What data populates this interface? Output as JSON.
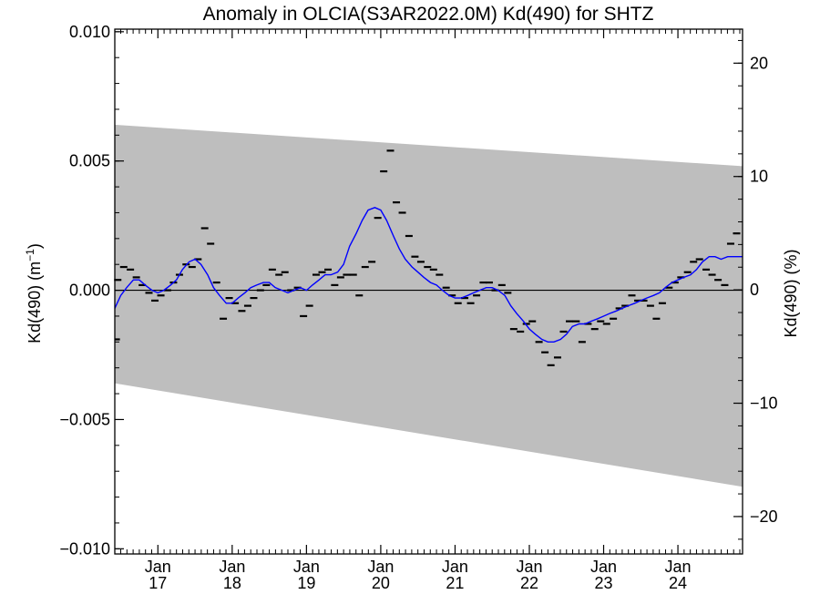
{
  "chart_data": {
    "type": "scatter",
    "title": "Anomaly in OLCIA(S3AR2022.0M) Kd(490) for SHTZ",
    "ylabel_left": "Kd(490) (m",
    "ylabel_left_sup": "−1",
    "ylabel_left_close": ")",
    "ylabel_right": "Kd(490) (%)",
    "xlim": [
      2016.42,
      2024.87
    ],
    "ylim_left": [
      -0.0102,
      0.0101
    ],
    "ylim_right": [
      -23.3,
      23.0
    ],
    "y_ticks_left": [
      {
        "value": 0.01,
        "label": "0.010"
      },
      {
        "value": 0.005,
        "label": "0.005"
      },
      {
        "value": 0.0,
        "label": "0.000"
      },
      {
        "value": -0.005,
        "label": "−0.005"
      },
      {
        "value": -0.01,
        "label": "−0.010"
      }
    ],
    "y_ticks_right": [
      {
        "value": 20,
        "label": "20"
      },
      {
        "value": 10,
        "label": "10"
      },
      {
        "value": 0,
        "label": "0"
      },
      {
        "value": -10,
        "label": "−10"
      },
      {
        "value": -20,
        "label": "−20"
      }
    ],
    "x_ticks": [
      {
        "value": 2017.0,
        "month": "Jan",
        "year": "17"
      },
      {
        "value": 2018.0,
        "month": "Jan",
        "year": "18"
      },
      {
        "value": 2019.0,
        "month": "Jan",
        "year": "19"
      },
      {
        "value": 2020.0,
        "month": "Jan",
        "year": "20"
      },
      {
        "value": 2021.0,
        "month": "Jan",
        "year": "21"
      },
      {
        "value": 2022.0,
        "month": "Jan",
        "year": "22"
      },
      {
        "value": 2023.0,
        "month": "Jan",
        "year": "23"
      },
      {
        "value": 2024.0,
        "month": "Jan",
        "year": "24"
      }
    ],
    "band": {
      "x": [
        2016.42,
        2024.87
      ],
      "upper": [
        0.0064,
        0.0048
      ],
      "lower": [
        -0.0036,
        -0.0076
      ],
      "color": "#bebebe"
    },
    "zero_line": 0,
    "monthly": {
      "x": [
        2016.46,
        2016.54,
        2016.63,
        2016.71,
        2016.79,
        2016.88,
        2016.96,
        2017.04,
        2017.13,
        2017.21,
        2017.29,
        2017.38,
        2017.46,
        2017.54,
        2017.63,
        2017.71,
        2017.79,
        2017.88,
        2017.96,
        2018.04,
        2018.13,
        2018.21,
        2018.29,
        2018.38,
        2018.46,
        2018.54,
        2018.63,
        2018.71,
        2018.79,
        2018.88,
        2018.96,
        2019.04,
        2019.13,
        2019.21,
        2019.29,
        2019.38,
        2019.46,
        2019.54,
        2019.63,
        2019.71,
        2019.79,
        2019.88,
        2019.96,
        2020.04,
        2020.13,
        2020.21,
        2020.29,
        2020.38,
        2020.46,
        2020.54,
        2020.63,
        2020.71,
        2020.79,
        2020.88,
        2020.96,
        2021.04,
        2021.13,
        2021.21,
        2021.29,
        2021.38,
        2021.46,
        2021.54,
        2021.63,
        2021.71,
        2021.79,
        2021.88,
        2021.96,
        2022.04,
        2022.13,
        2022.21,
        2022.29,
        2022.38,
        2022.46,
        2022.54,
        2022.63,
        2022.71,
        2022.79,
        2022.88,
        2022.96,
        2023.04,
        2023.13,
        2023.21,
        2023.29,
        2023.38,
        2023.46,
        2023.54,
        2023.63,
        2023.71,
        2023.79,
        2023.88,
        2023.96,
        2024.04,
        2024.13,
        2024.21,
        2024.29,
        2024.38,
        2024.46,
        2024.54,
        2024.63,
        2024.71,
        2024.79
      ],
      "y": [
        0.0004,
        0.0009,
        0.0008,
        0.0005,
        0.0002,
        -0.0001,
        -0.0004,
        -0.0002,
        0.0,
        0.0003,
        0.0006,
        0.001,
        0.0009,
        0.0012,
        0.0024,
        0.0018,
        0.0003,
        -0.0011,
        -0.0003,
        -0.0005,
        -0.0008,
        -0.0006,
        -0.0003,
        0.0,
        0.0002,
        0.0008,
        0.0006,
        0.0007,
        0.0,
        0.0001,
        -0.001,
        -0.0006,
        0.0006,
        0.0007,
        0.0008,
        0.0002,
        0.0005,
        0.0006,
        0.0006,
        -0.0002,
        0.0009,
        0.0011,
        0.0028,
        0.0046,
        0.0054,
        0.0034,
        0.003,
        0.0021,
        0.0013,
        0.0011,
        0.0009,
        0.0008,
        0.0006,
        0.0001,
        -0.0002,
        -0.0005,
        -0.0003,
        -0.0005,
        -0.0002,
        0.0003,
        0.0003,
        0.0,
        0.0002,
        -0.0001,
        -0.0015,
        -0.0016,
        -0.0013,
        -0.0012,
        -0.002,
        -0.0024,
        -0.0029,
        -0.0026,
        -0.0016,
        -0.0012,
        -0.0012,
        -0.002,
        -0.0013,
        -0.0015,
        -0.0012,
        -0.0013,
        -0.0011,
        -0.0007,
        -0.0006,
        -0.0002,
        -0.0004,
        -0.0004,
        -0.0006,
        -0.0011,
        -0.0005,
        0.0001,
        0.0003,
        0.0005,
        0.0007,
        0.0011,
        0.0012,
        0.0008,
        0.0006,
        0.0004,
        0.0002,
        0.0018,
        0.0022
      ],
      "extra_x": [
        2016.44
      ],
      "extra_y": [
        -0.0019
      ],
      "color": "#000000"
    },
    "smoothed": {
      "x": [
        2016.42,
        2016.5,
        2016.58,
        2016.67,
        2016.75,
        2016.83,
        2016.92,
        2017.0,
        2017.08,
        2017.17,
        2017.25,
        2017.33,
        2017.42,
        2017.5,
        2017.58,
        2017.67,
        2017.75,
        2017.83,
        2017.92,
        2018.0,
        2018.08,
        2018.17,
        2018.25,
        2018.33,
        2018.42,
        2018.5,
        2018.58,
        2018.67,
        2018.75,
        2018.83,
        2018.92,
        2019.0,
        2019.08,
        2019.17,
        2019.25,
        2019.33,
        2019.42,
        2019.5,
        2019.58,
        2019.67,
        2019.75,
        2019.83,
        2019.92,
        2020.0,
        2020.08,
        2020.17,
        2020.25,
        2020.33,
        2020.42,
        2020.5,
        2020.58,
        2020.67,
        2020.75,
        2020.83,
        2020.92,
        2021.0,
        2021.08,
        2021.17,
        2021.25,
        2021.33,
        2021.42,
        2021.5,
        2021.58,
        2021.67,
        2021.75,
        2021.83,
        2021.92,
        2022.0,
        2022.08,
        2022.17,
        2022.25,
        2022.33,
        2022.42,
        2022.5,
        2022.58,
        2022.67,
        2022.75,
        2022.83,
        2022.92,
        2023.0,
        2023.08,
        2023.17,
        2023.25,
        2023.33,
        2023.42,
        2023.5,
        2023.58,
        2023.67,
        2023.75,
        2023.83,
        2023.92,
        2024.0,
        2024.08,
        2024.17,
        2024.25,
        2024.33,
        2024.42,
        2024.5,
        2024.58,
        2024.67,
        2024.75,
        2024.83,
        2024.87
      ],
      "y": [
        -0.0007,
        -0.0002,
        0.0001,
        0.0004,
        0.0004,
        0.0002,
        0.0,
        -0.0001,
        0.0,
        0.0002,
        0.0004,
        0.0008,
        0.0011,
        0.0012,
        0.001,
        0.0006,
        0.0001,
        -0.0002,
        -0.0005,
        -0.0005,
        -0.0003,
        -0.0001,
        0.0001,
        0.0002,
        0.0003,
        0.0003,
        0.0001,
        0.0,
        -0.0001,
        0.0,
        0.0001,
        0.0,
        0.0002,
        0.0004,
        0.0006,
        0.0006,
        0.0007,
        0.001,
        0.0017,
        0.0022,
        0.0027,
        0.0031,
        0.0032,
        0.0031,
        0.0027,
        0.0021,
        0.0016,
        0.0012,
        0.0009,
        0.0007,
        0.0005,
        0.0003,
        0.0002,
        0.0,
        -0.0002,
        -0.0003,
        -0.0003,
        -0.0002,
        -0.0001,
        0.0,
        0.0001,
        0.0001,
        0.0,
        -0.0002,
        -0.0006,
        -0.0009,
        -0.0012,
        -0.0015,
        -0.0017,
        -0.0019,
        -0.002,
        -0.002,
        -0.0019,
        -0.0017,
        -0.0014,
        -0.0013,
        -0.0013,
        -0.0012,
        -0.0011,
        -0.001,
        -0.0009,
        -0.0008,
        -0.0007,
        -0.0006,
        -0.0005,
        -0.0004,
        -0.0003,
        -0.0002,
        -0.0001,
        0.0001,
        0.0003,
        0.0004,
        0.0005,
        0.0006,
        0.0008,
        0.0011,
        0.0013,
        0.0013,
        0.0012,
        0.0013,
        0.0013,
        0.0013,
        0.0013
      ],
      "color": "#0000ff"
    }
  }
}
